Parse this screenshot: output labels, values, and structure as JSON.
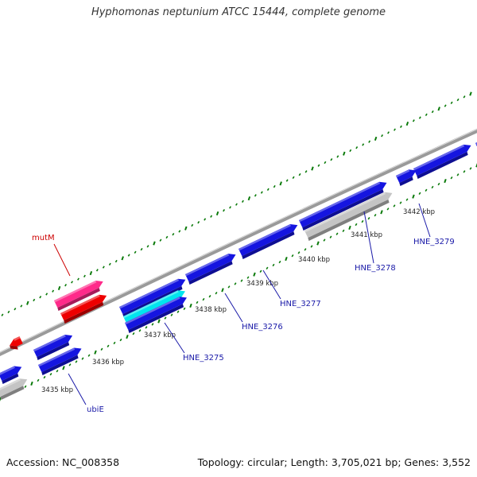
{
  "title": "Hyphomonas neptunium ATCC 15444, complete genome",
  "footer": {
    "accession": "Accession: NC_008358",
    "summary": "Topology: circular; Length: 3,705,021 bp; Genes: 3,552"
  },
  "colors": {
    "cds_forward": "#1515e0",
    "cds_reverse": "#1515e0",
    "rrna_gene": "#ff2a8a",
    "red_gene": "#ee0000",
    "cyan_gene": "#00e5ee",
    "backbone": "#9a9a9a",
    "tick": "#0a7a0a",
    "label_blue": "#1a1aa8",
    "label_red": "#cc0000"
  },
  "kbp_labels": [
    "3435 kbp",
    "3436 kbp",
    "3437 kbp",
    "3438 kbp",
    "3439 kbp",
    "3440 kbp",
    "3441 kbp",
    "3442 kbp"
  ],
  "gene_labels": [
    {
      "text": "mutM",
      "color": "label_red"
    },
    {
      "text": "ubiE",
      "color": "label_blue"
    },
    {
      "text": "HNE_3275",
      "color": "label_blue"
    },
    {
      "text": "HNE_3276",
      "color": "label_blue"
    },
    {
      "text": "HNE_3277",
      "color": "label_blue"
    },
    {
      "text": "HNE_3278",
      "color": "label_blue"
    },
    {
      "text": "HNE_3279",
      "color": "label_blue"
    }
  ]
}
